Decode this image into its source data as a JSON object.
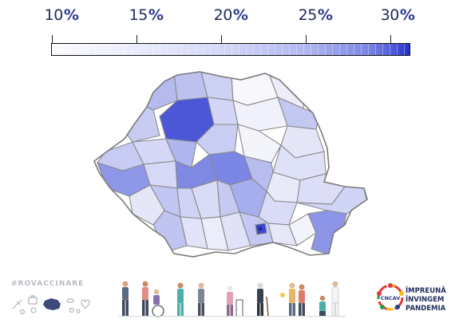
{
  "legend": {
    "ticks": [
      {
        "number": "10",
        "unit": "%",
        "value": 10
      },
      {
        "number": "15",
        "unit": "%",
        "value": 15
      },
      {
        "number": "20",
        "unit": "%",
        "value": 20
      },
      {
        "number": "25",
        "unit": "%",
        "value": 25
      },
      {
        "number": "30",
        "unit": "%",
        "value": 30
      }
    ],
    "range": [
      10,
      31
    ],
    "color_low": "#fbfbff",
    "color_high": "#2431c9"
  },
  "map": {
    "outline_color": "#8a8a8a",
    "highlighted_regions": [
      "northwest-peak-region",
      "capital-region"
    ]
  },
  "footer": {
    "hashtag": "#ROVACCINARE",
    "logo": {
      "ring_text": "CNCAV",
      "lines": [
        "ÎMPREUNĂ",
        "ÎNVINGEM",
        "PANDEMIA"
      ],
      "colors": [
        "#e23b3b",
        "#f4c20d",
        "#2a3a8c",
        "#2a9d4a"
      ]
    },
    "people_icons": [
      "man-icon",
      "caregiver-wheelchair-icon",
      "nurse-icon",
      "elderly-man-icon",
      "elderly-walker-icon",
      "elderly-cane-icon",
      "couple-icon",
      "doctor-icon"
    ],
    "mini_icons": [
      "syringe-icon",
      "medical-bag-icon",
      "stethoscope-icon",
      "country-map-icon",
      "virus-icon",
      "pills-icon",
      "heart-icon"
    ]
  }
}
